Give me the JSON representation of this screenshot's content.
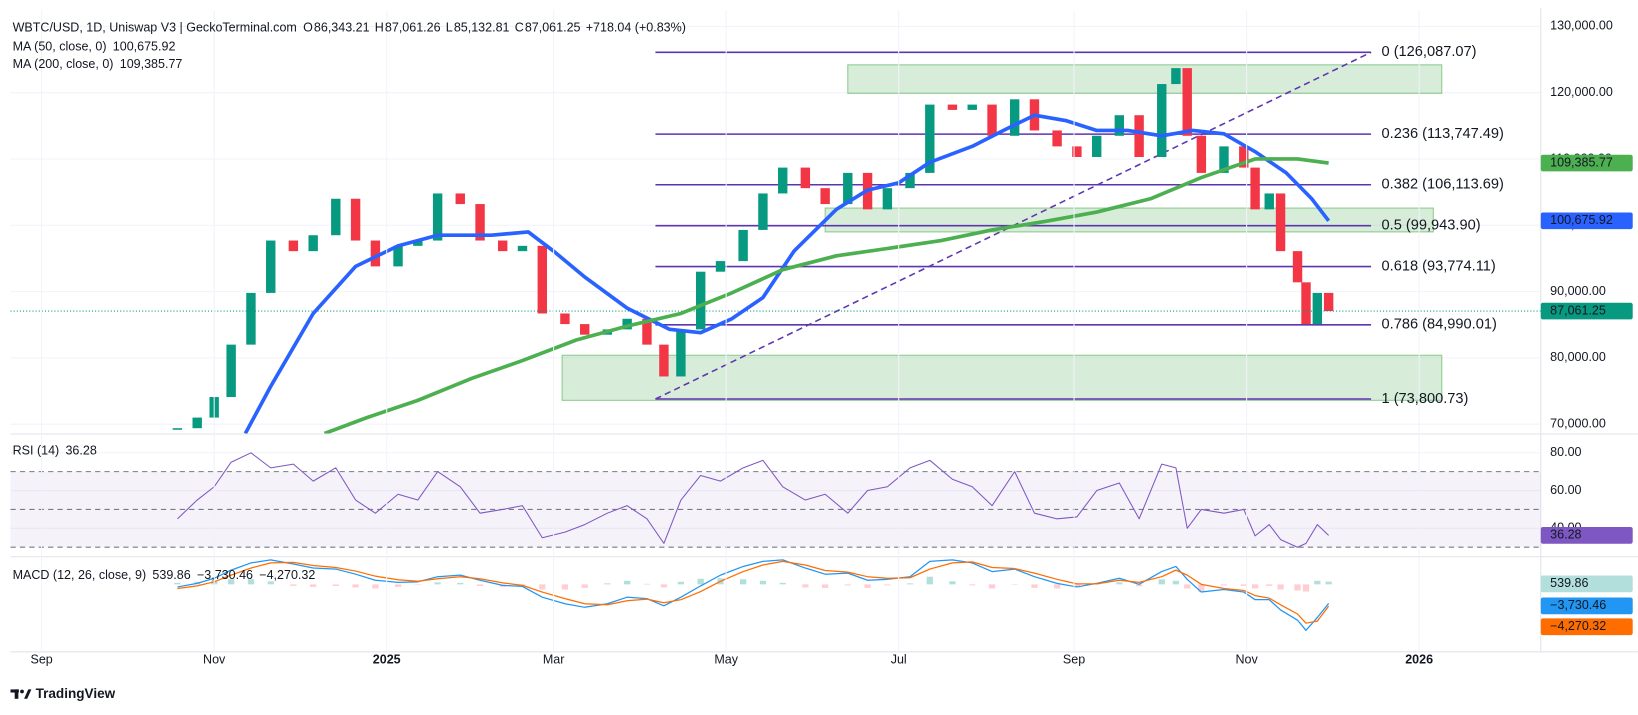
{
  "chart_data": [
    {
      "type": "candlestick",
      "title": "WBTC/USD, 1D, Uniswap V3 | GeckoTerminal.com",
      "ohlc": [
        [
          "O",
          "86,343.21"
        ],
        [
          "H",
          "87,061.26"
        ],
        [
          "L",
          "85,132.81"
        ],
        [
          "C",
          "87,061.25"
        ]
      ],
      "change": "+718.04 (+0.83%)",
      "xlim": [
        -11,
        530
      ],
      "xticks": [
        {
          "value": 0,
          "label": "Sep"
        },
        {
          "value": 61,
          "label": "Nov"
        },
        {
          "value": 122,
          "label": "2025"
        },
        {
          "value": 181,
          "label": "Mar"
        },
        {
          "value": 242,
          "label": "May"
        },
        {
          "value": 303,
          "label": "Jul"
        },
        {
          "value": 365,
          "label": "Sep"
        },
        {
          "value": 426,
          "label": "Nov"
        },
        {
          "value": 487,
          "label": "2026"
        }
      ],
      "ylim": [
        68600,
        132400
      ],
      "yticks": [
        {
          "value": 70000,
          "label": "70,000.00"
        },
        {
          "value": 80000,
          "label": "80,000.00"
        },
        {
          "value": 90000,
          "label": "90,000.00"
        },
        {
          "value": 100000,
          "label": "100,000.00"
        },
        {
          "value": 110000,
          "label": "110,000.00"
        },
        {
          "value": 120000,
          "label": "120,000.00"
        },
        {
          "value": 130000,
          "label": "130,000.00"
        }
      ],
      "grid": true,
      "up_color": "#089981",
      "down_color": "#f23645",
      "x": [
        48,
        55,
        61,
        67,
        74,
        81,
        89,
        96,
        104,
        111,
        118,
        126,
        133,
        140,
        148,
        155,
        163,
        170,
        177,
        185,
        192,
        200,
        207,
        214,
        220,
        226,
        233,
        240,
        248,
        255,
        262,
        270,
        277,
        285,
        292,
        299,
        307,
        314,
        322,
        329,
        336,
        344,
        351,
        359,
        366,
        373,
        381,
        388,
        396,
        401,
        405,
        410,
        418,
        425,
        429,
        434,
        438,
        444,
        447,
        451,
        455
      ],
      "values": [
        69400,
        71000,
        74100,
        82000,
        89800,
        97700,
        96100,
        98500,
        104000,
        97700,
        93800,
        96900,
        97700,
        104800,
        103200,
        97700,
        96100,
        96900,
        86700,
        85100,
        83500,
        84300,
        85900,
        82000,
        77200,
        84300,
        93000,
        94600,
        99300,
        104800,
        108700,
        105600,
        103200,
        107900,
        102400,
        105600,
        107900,
        118200,
        117400,
        118200,
        113500,
        119000,
        114300,
        111900,
        110300,
        113500,
        116600,
        110300,
        121300,
        123700,
        113500,
        107900,
        111900,
        108700,
        102400,
        104800,
        96100,
        91400,
        85100,
        89800,
        87061.25
      ],
      "series": [
        {
          "name": "MA (50, close, 0)",
          "color": "#2962ff",
          "value_label": "100,675.92",
          "x": [
            72,
            81,
            96,
            111,
            126,
            140,
            159,
            172,
            181,
            192,
            207,
            222,
            233,
            244,
            255,
            266,
            281,
            292,
            303,
            314,
            329,
            340,
            351,
            362,
            373,
            384,
            396,
            407,
            418,
            429,
            440,
            449,
            455
          ],
          "values": [
            68600,
            75700,
            86700,
            93800,
            96900,
            98500,
            98500,
            99000,
            96100,
            92200,
            87500,
            84300,
            83800,
            85900,
            89100,
            96100,
            102400,
            105300,
            106400,
            109500,
            111900,
            114300,
            116600,
            115800,
            114300,
            114300,
            113500,
            114300,
            113800,
            111100,
            107900,
            104000,
            100675.92
          ]
        },
        {
          "name": "MA (200, close, 0)",
          "color": "#4caf50",
          "value_label": "109,385.77",
          "x": [
            100,
            115,
            133,
            152,
            170,
            189,
            207,
            226,
            244,
            262,
            281,
            299,
            318,
            336,
            355,
            373,
            392,
            410,
            429,
            444,
            455
          ],
          "values": [
            68600,
            71000,
            73600,
            76900,
            79600,
            82700,
            84800,
            86700,
            89800,
            93300,
            95400,
            96500,
            97700,
            99300,
            100600,
            102000,
            104000,
            107200,
            110000,
            110000,
            109385.77
          ]
        }
      ],
      "fib": {
        "color": "#5e35b1",
        "label_color": "#7e57c2",
        "x": [
          217,
          470
        ],
        "levels": [
          {
            "value": 126087.07,
            "label": "0 (126,087.07)"
          },
          {
            "value": 113747.49,
            "label": "0.236 (113,747.49)"
          },
          {
            "value": 106113.69,
            "label": "0.382 (106,113.69)"
          },
          {
            "value": 99943.9,
            "label": "0.5 (99,943.90)"
          },
          {
            "value": 93774.11,
            "label": "0.618 (93,774.11)"
          },
          {
            "value": 84990.01,
            "label": "0.786 (84,990.01)"
          },
          {
            "value": 73800.73,
            "label": "1 (73,800.73)"
          }
        ]
      },
      "zone_color": "#4caf50",
      "zones": [
        {
          "x": [
            285,
            495
          ],
          "ylim": [
            119900,
            124200
          ]
        },
        {
          "x": [
            277,
            492
          ],
          "ylim": [
            99000,
            102600
          ]
        },
        {
          "x": [
            184,
            495
          ],
          "ylim": [
            73600,
            80400
          ]
        }
      ]
    },
    {
      "type": "line",
      "title": "RSI (14)",
      "value_label": "36.28",
      "color": "#7e57c2",
      "band_fill": "#7e57c2",
      "ylim": [
        25.5,
        89.1
      ],
      "yticks": [
        {
          "value": 40,
          "label": "40.00"
        },
        {
          "value": 60,
          "label": "60.00"
        },
        {
          "value": 80,
          "label": "80.00"
        }
      ],
      "bands": [
        30,
        50,
        70
      ],
      "x": [
        48,
        55,
        61,
        67,
        74,
        81,
        89,
        96,
        104,
        111,
        118,
        126,
        133,
        140,
        148,
        155,
        163,
        170,
        177,
        185,
        192,
        200,
        207,
        214,
        220,
        226,
        233,
        240,
        248,
        255,
        262,
        270,
        277,
        285,
        292,
        299,
        307,
        314,
        322,
        329,
        336,
        344,
        351,
        359,
        366,
        373,
        381,
        388,
        396,
        401,
        405,
        410,
        418,
        425,
        429,
        434,
        438,
        444,
        447,
        451,
        455
      ],
      "values": [
        45,
        55,
        62,
        75,
        80,
        72,
        74,
        65,
        72,
        55,
        48,
        58,
        55,
        70,
        62,
        48,
        50,
        52,
        35,
        38,
        42,
        48,
        52,
        45,
        32,
        55,
        68,
        65,
        72,
        76,
        62,
        55,
        58,
        48,
        60,
        62,
        72,
        76,
        66,
        62,
        52,
        70,
        48,
        45,
        46,
        60,
        64,
        45,
        74,
        72,
        40,
        50,
        48,
        50,
        36,
        42,
        34,
        30,
        32,
        42,
        36.28
      ]
    },
    {
      "type": "macd",
      "title": "MACD (12, 26, close, 9)",
      "ylim": [
        -13000,
        5000
      ],
      "x": [
        48,
        55,
        61,
        67,
        74,
        81,
        89,
        96,
        104,
        111,
        118,
        126,
        133,
        140,
        148,
        155,
        163,
        170,
        177,
        185,
        192,
        200,
        207,
        214,
        220,
        226,
        233,
        240,
        248,
        255,
        262,
        270,
        277,
        285,
        292,
        299,
        307,
        314,
        322,
        329,
        336,
        344,
        351,
        359,
        366,
        373,
        381,
        388,
        396,
        401,
        405,
        410,
        418,
        425,
        429,
        434,
        438,
        444,
        447,
        451,
        455
      ],
      "histogram": {
        "up_color": "#b2dfdb",
        "down_color": "#ffcdd2",
        "value_label": "539.86",
        "values": [
          300,
          500,
          700,
          1000,
          1000,
          600,
          -300,
          -500,
          -300,
          -600,
          -800,
          -500,
          -100,
          400,
          300,
          -300,
          -500,
          -200,
          -1000,
          -1000,
          -700,
          200,
          700,
          100,
          -600,
          500,
          1100,
          1200,
          1000,
          700,
          300,
          -600,
          -700,
          -200,
          -700,
          -200,
          200,
          1500,
          600,
          -200,
          -800,
          -100,
          -700,
          -800,
          -600,
          100,
          400,
          -400,
          1000,
          700,
          -800,
          -1500,
          -200,
          -300,
          -800,
          -300,
          -1000,
          -1200,
          -1400,
          700,
          539.86
        ]
      },
      "macd": {
        "color": "#2196f3",
        "value_label": "−3,730.46",
        "values": [
          -500,
          200,
          1200,
          2800,
          4200,
          4800,
          4000,
          3200,
          3000,
          2000,
          800,
          400,
          500,
          1500,
          1800,
          800,
          -200,
          -400,
          -2500,
          -3800,
          -4500,
          -3800,
          -2500,
          -2800,
          -4200,
          -2500,
          -300,
          1800,
          3500,
          4500,
          4800,
          3200,
          2000,
          2200,
          800,
          1000,
          1500,
          4500,
          4800,
          4200,
          2500,
          3000,
          1500,
          200,
          -500,
          200,
          1200,
          0,
          2500,
          3500,
          1000,
          -1500,
          -1000,
          -1500,
          -3000,
          -3000,
          -5000,
          -7000,
          -9000,
          -6500,
          -3730.46
        ]
      },
      "signal": {
        "color": "#ff6d00",
        "value_label": "−4,270.32",
        "values": [
          -800,
          -300,
          500,
          1800,
          3200,
          4200,
          4300,
          3700,
          3300,
          2600,
          1600,
          900,
          600,
          1100,
          1500,
          1100,
          300,
          -200,
          -1500,
          -2800,
          -3800,
          -4000,
          -3200,
          -2900,
          -3600,
          -3000,
          -1400,
          600,
          2500,
          3800,
          4500,
          3800,
          2700,
          2400,
          1500,
          1200,
          1300,
          3000,
          4200,
          4400,
          3300,
          3100,
          2200,
          1000,
          100,
          100,
          800,
          400,
          1500,
          2800,
          1800,
          0,
          -800,
          -1200,
          -2200,
          -2700,
          -4000,
          -5800,
          -7600,
          -7200,
          -4270.32
        ]
      }
    }
  ],
  "footer": {
    "brand": "TradingView"
  }
}
